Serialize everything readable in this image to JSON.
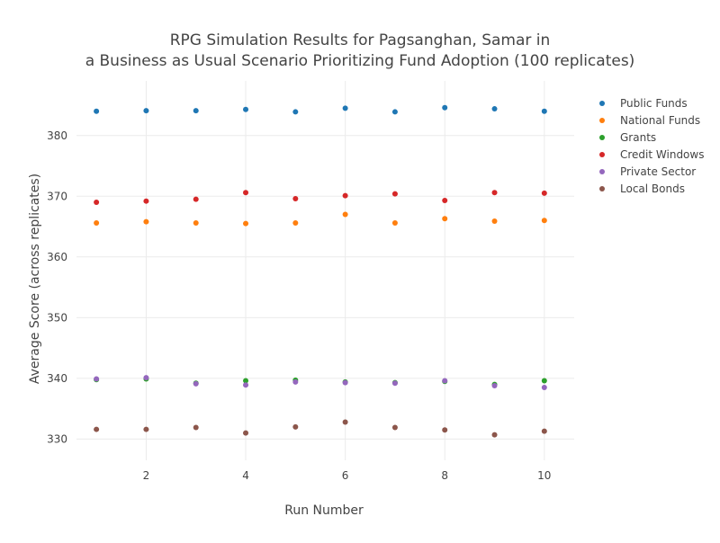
{
  "chart_data": {
    "type": "scatter",
    "title_lines": [
      "RPG Simulation Results for Pagsanghan, Samar in",
      "a Business as Usual Scenario Prioritizing Fund Adoption (100 replicates)"
    ],
    "xlabel": "Run Number",
    "ylabel": "Average Score (across replicates)",
    "xlim": [
      0.6,
      10.6
    ],
    "ylim": [
      326.5,
      389
    ],
    "x_ticks": [
      2,
      4,
      6,
      8,
      10
    ],
    "y_ticks": [
      330,
      340,
      350,
      360,
      370,
      380
    ],
    "grid": true,
    "legend_position": "top-right",
    "x": [
      1,
      2,
      3,
      4,
      5,
      6,
      7,
      8,
      9,
      10
    ],
    "series": [
      {
        "name": "Public Funds",
        "color": "#1f77b4",
        "values": [
          384.0,
          384.1,
          384.1,
          384.3,
          383.9,
          384.5,
          383.9,
          384.6,
          384.4,
          384.0
        ]
      },
      {
        "name": "National Funds",
        "color": "#ff7f0e",
        "values": [
          365.6,
          365.8,
          365.6,
          365.5,
          365.6,
          367.0,
          365.6,
          366.3,
          365.9,
          366.0
        ]
      },
      {
        "name": "Grants",
        "color": "#2ca02c",
        "values": [
          339.8,
          339.9,
          339.2,
          339.6,
          339.7,
          339.4,
          339.3,
          339.5,
          339.0,
          339.6
        ]
      },
      {
        "name": "Credit Windows",
        "color": "#d62728",
        "values": [
          369.0,
          369.2,
          369.5,
          370.6,
          369.6,
          370.1,
          370.4,
          369.3,
          370.6,
          370.5
        ]
      },
      {
        "name": "Private Sector",
        "color": "#9467bd",
        "values": [
          339.9,
          340.1,
          339.1,
          338.9,
          339.4,
          339.3,
          339.2,
          339.6,
          338.8,
          338.5
        ]
      },
      {
        "name": "Local Bonds",
        "color": "#8c564b",
        "values": [
          331.6,
          331.6,
          331.9,
          331.0,
          332.0,
          332.8,
          331.9,
          331.5,
          330.7,
          331.3
        ]
      }
    ]
  }
}
